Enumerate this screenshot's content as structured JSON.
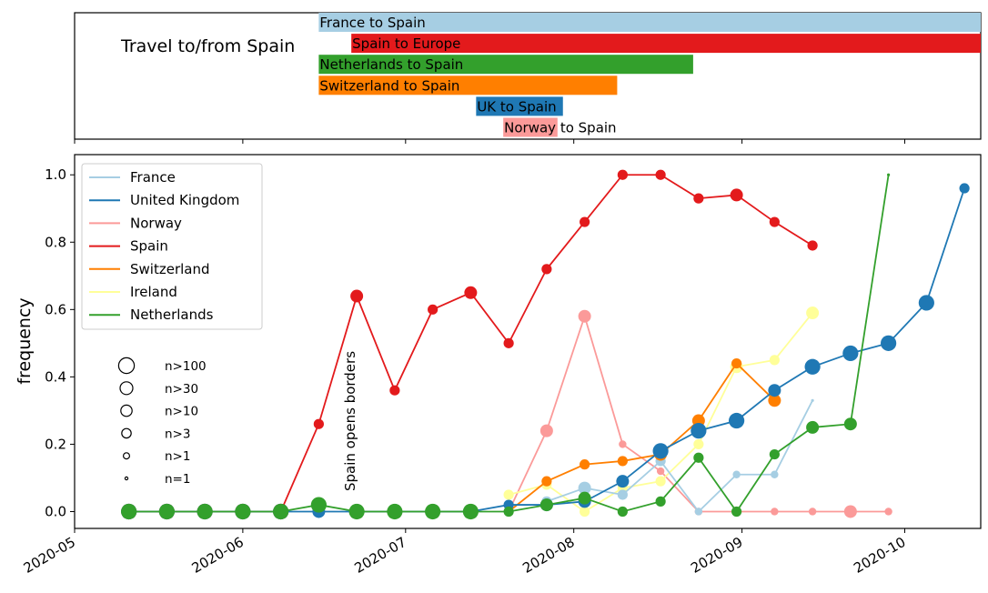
{
  "chart_data": [
    {
      "type": "bar",
      "orientation": "horizontal",
      "subtype": "timeline",
      "title": "Travel to/from Spain",
      "bars": [
        {
          "label": "France to Spain",
          "start": "2020-06-15",
          "end": "2020-10-15",
          "color": "#a6cee3"
        },
        {
          "label": "Spain to Europe",
          "start": "2020-06-21",
          "end": "2020-10-15",
          "color": "#e31a1c"
        },
        {
          "label": "Netherlands to Spain",
          "start": "2020-06-15",
          "end": "2020-08-23",
          "color": "#33a02c"
        },
        {
          "label": "Switzerland to Spain",
          "start": "2020-06-15",
          "end": "2020-08-09",
          "color": "#ff7f00"
        },
        {
          "label": "UK to Spain",
          "start": "2020-07-14",
          "end": "2020-07-30",
          "color": "#1f78b4"
        },
        {
          "label": "Norway to Spain",
          "start": "2020-07-19",
          "end": "2020-07-29",
          "color": "#fb9a99"
        }
      ]
    },
    {
      "type": "line",
      "ylabel": "frequency",
      "xlabel": "",
      "ylim": [
        -0.05,
        1.06
      ],
      "xlim": [
        "2020-05-01",
        "2020-10-15"
      ],
      "x_ticks": [
        "2020-05",
        "2020-06",
        "2020-07",
        "2020-08",
        "2020-09",
        "2020-10"
      ],
      "y_ticks": [
        "0.0",
        "0.2",
        "0.4",
        "0.6",
        "0.8",
        "1.0"
      ],
      "legend_position": "top-left",
      "annotation": {
        "text": "Spain opens borders",
        "x": "2020-06-21"
      },
      "size_legend": [
        "n>100",
        "n>30",
        "n>10",
        "n>3",
        "n>1",
        "n=1"
      ],
      "series": [
        {
          "name": "Spain",
          "color": "#e31a1c",
          "points": [
            [
              "2020-05-11",
              0.0,
              5
            ],
            [
              "2020-05-18",
              0.0,
              5
            ],
            [
              "2020-05-25",
              0.0,
              5
            ],
            [
              "2020-06-01",
              0.0,
              5
            ],
            [
              "2020-06-08",
              0.0,
              5
            ],
            [
              "2020-06-15",
              0.26,
              3
            ],
            [
              "2020-06-22",
              0.64,
              4
            ],
            [
              "2020-06-29",
              0.36,
              3
            ],
            [
              "2020-07-06",
              0.6,
              3
            ],
            [
              "2020-07-13",
              0.65,
              4
            ],
            [
              "2020-07-20",
              0.5,
              3
            ],
            [
              "2020-07-27",
              0.72,
              3
            ],
            [
              "2020-08-03",
              0.86,
              3
            ],
            [
              "2020-08-10",
              1.0,
              3
            ],
            [
              "2020-08-17",
              1.0,
              3
            ],
            [
              "2020-08-24",
              0.93,
              3
            ],
            [
              "2020-08-31",
              0.94,
              4
            ],
            [
              "2020-09-07",
              0.86,
              3
            ],
            [
              "2020-09-14",
              0.79,
              3
            ]
          ]
        },
        {
          "name": "Norway",
          "color": "#fb9a99",
          "points": [
            [
              "2020-07-20",
              0.0,
              2
            ],
            [
              "2020-07-27",
              0.24,
              4
            ],
            [
              "2020-08-03",
              0.58,
              4
            ],
            [
              "2020-08-10",
              0.2,
              2
            ],
            [
              "2020-08-17",
              0.12,
              2
            ],
            [
              "2020-08-24",
              0.0,
              2
            ],
            [
              "2020-08-31",
              0.0,
              2
            ],
            [
              "2020-09-07",
              0.0,
              2
            ],
            [
              "2020-09-14",
              0.0,
              2
            ],
            [
              "2020-09-21",
              0.0,
              4
            ],
            [
              "2020-09-28",
              0.0,
              2
            ]
          ]
        },
        {
          "name": "Ireland",
          "color": "#ffff99",
          "points": [
            [
              "2020-07-20",
              0.05,
              3
            ],
            [
              "2020-07-27",
              0.08,
              3
            ],
            [
              "2020-08-03",
              0.0,
              3
            ],
            [
              "2020-08-10",
              0.07,
              3
            ],
            [
              "2020-08-17",
              0.09,
              3
            ],
            [
              "2020-08-24",
              0.2,
              3
            ],
            [
              "2020-08-31",
              0.43,
              4
            ],
            [
              "2020-09-07",
              0.45,
              3
            ],
            [
              "2020-09-14",
              0.59,
              4
            ]
          ]
        },
        {
          "name": "France",
          "color": "#a6cee3",
          "points": [
            [
              "2020-07-27",
              0.03,
              3
            ],
            [
              "2020-08-03",
              0.07,
              4
            ],
            [
              "2020-08-10",
              0.05,
              3
            ],
            [
              "2020-08-17",
              0.15,
              3
            ],
            [
              "2020-08-24",
              0.0,
              2
            ],
            [
              "2020-08-31",
              0.11,
              2
            ],
            [
              "2020-09-07",
              0.11,
              2
            ],
            [
              "2020-09-14",
              0.33,
              1
            ]
          ]
        },
        {
          "name": "Switzerland",
          "color": "#ff7f00",
          "points": [
            [
              "2020-07-20",
              0.0,
              2
            ],
            [
              "2020-07-27",
              0.09,
              3
            ],
            [
              "2020-08-03",
              0.14,
              3
            ],
            [
              "2020-08-10",
              0.15,
              3
            ],
            [
              "2020-08-17",
              0.17,
              4
            ],
            [
              "2020-08-24",
              0.27,
              4
            ],
            [
              "2020-08-31",
              0.44,
              3
            ],
            [
              "2020-09-07",
              0.33,
              4
            ]
          ]
        },
        {
          "name": "United Kingdom",
          "color": "#1f78b4",
          "points": [
            [
              "2020-05-11",
              0.0,
              5
            ],
            [
              "2020-05-18",
              0.0,
              5
            ],
            [
              "2020-05-25",
              0.0,
              5
            ],
            [
              "2020-06-01",
              0.0,
              5
            ],
            [
              "2020-06-08",
              0.0,
              5
            ],
            [
              "2020-06-15",
              0.0,
              4
            ],
            [
              "2020-06-22",
              0.0,
              4
            ],
            [
              "2020-06-29",
              0.0,
              4
            ],
            [
              "2020-07-06",
              0.0,
              4
            ],
            [
              "2020-07-13",
              0.0,
              4
            ],
            [
              "2020-07-20",
              0.02,
              3
            ],
            [
              "2020-07-27",
              0.02,
              4
            ],
            [
              "2020-08-03",
              0.03,
              4
            ],
            [
              "2020-08-10",
              0.09,
              4
            ],
            [
              "2020-08-17",
              0.18,
              5
            ],
            [
              "2020-08-24",
              0.24,
              5
            ],
            [
              "2020-08-31",
              0.27,
              5
            ],
            [
              "2020-09-07",
              0.36,
              4
            ],
            [
              "2020-09-14",
              0.43,
              5
            ],
            [
              "2020-09-21",
              0.47,
              5
            ],
            [
              "2020-09-28",
              0.5,
              5
            ],
            [
              "2020-10-05",
              0.62,
              5
            ],
            [
              "2020-10-12",
              0.96,
              3
            ]
          ]
        },
        {
          "name": "Netherlands",
          "color": "#33a02c",
          "points": [
            [
              "2020-05-11",
              0.0,
              5
            ],
            [
              "2020-05-18",
              0.0,
              5
            ],
            [
              "2020-05-25",
              0.0,
              5
            ],
            [
              "2020-06-01",
              0.0,
              5
            ],
            [
              "2020-06-08",
              0.0,
              5
            ],
            [
              "2020-06-15",
              0.02,
              5
            ],
            [
              "2020-06-22",
              0.0,
              5
            ],
            [
              "2020-06-29",
              0.0,
              5
            ],
            [
              "2020-07-06",
              0.0,
              5
            ],
            [
              "2020-07-13",
              0.0,
              5
            ],
            [
              "2020-07-20",
              0.0,
              3
            ],
            [
              "2020-07-27",
              0.02,
              4
            ],
            [
              "2020-08-03",
              0.04,
              4
            ],
            [
              "2020-08-10",
              0.0,
              3
            ],
            [
              "2020-08-17",
              0.03,
              3
            ],
            [
              "2020-08-24",
              0.16,
              3
            ],
            [
              "2020-08-31",
              0.0,
              3
            ],
            [
              "2020-09-07",
              0.17,
              3
            ],
            [
              "2020-09-14",
              0.25,
              4
            ],
            [
              "2020-09-21",
              0.26,
              4
            ],
            [
              "2020-09-28",
              1.0,
              1
            ]
          ]
        }
      ]
    }
  ]
}
